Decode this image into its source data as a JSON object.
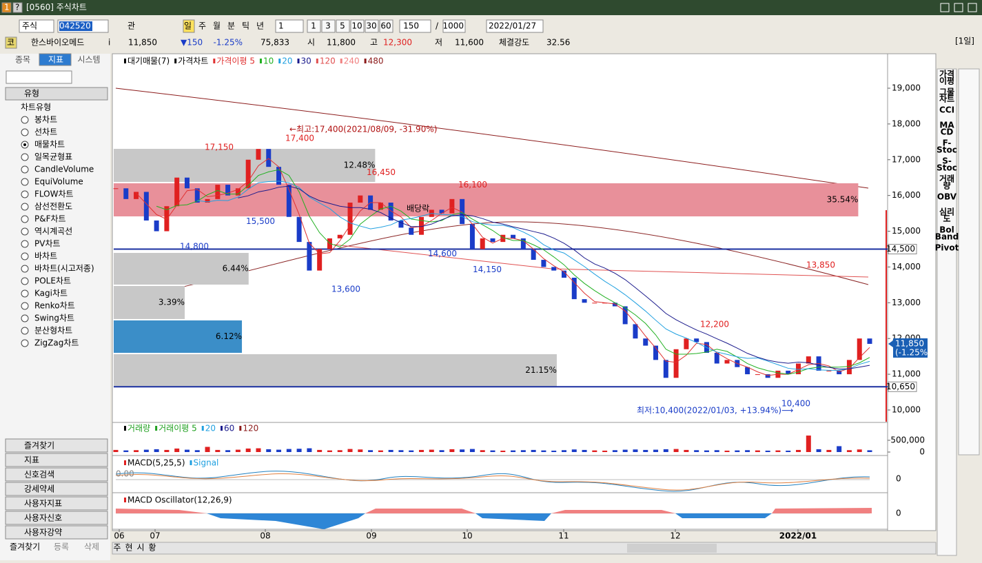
{
  "window": {
    "title": "[0560] 주식차트",
    "icons": [
      "1",
      "?"
    ]
  },
  "toolbar": {
    "market": "주식",
    "code": "042520",
    "watch": "관",
    "periods": [
      "일",
      "주",
      "월",
      "분",
      "틱",
      "년"
    ],
    "unit": "1",
    "quick": [
      "1",
      "3",
      "5",
      "10",
      "30",
      "60"
    ],
    "count": "150",
    "sep": "/",
    "max": "1000",
    "date": "2022/01/27"
  },
  "info": {
    "tag": "코",
    "name": "한스바이오메드",
    "i": "i",
    "price": "11,850",
    "change": "▼150",
    "rate": "-1.25%",
    "volume": "75,833",
    "open_label": "시",
    "open": "11,800",
    "high_label": "고",
    "high": "12,300",
    "low_label": "저",
    "low": "11,600",
    "strength_label": "체결강도",
    "strength": "32.56",
    "period": "[1일]"
  },
  "left": {
    "tabs": [
      "종목",
      "지표",
      "시스템"
    ],
    "section": "유형",
    "group": "차트유형",
    "items": [
      "봉차트",
      "선차트",
      "매물차트",
      "일목균형표",
      "CandleVolume",
      "EquiVolume",
      "FLOW차트",
      "삼선전환도",
      "P&F차트",
      "역시계곡선",
      "PV차트",
      "바차트",
      "바차트(시고저종)",
      "POLE차트",
      "Kagi차트",
      "Renko차트",
      "Swing차트",
      "분산형차트",
      "ZigZag차트"
    ],
    "menus": [
      "즐겨찾기",
      "지표",
      "신호검색",
      "강세약세",
      "사용자지표",
      "사용자신호",
      "사용자강약"
    ],
    "footer": [
      "즐겨찾기",
      "등록",
      "삭제"
    ]
  },
  "chart": {
    "legend": [
      {
        "name": "대기매물(7)",
        "color": "#000000"
      },
      {
        "name": "가격차트",
        "color": "#000000"
      },
      {
        "name": "가격이평 5",
        "color": "#e03030"
      },
      {
        "name": "10",
        "color": "#20b020"
      },
      {
        "name": "20",
        "color": "#20a0e0"
      },
      {
        "name": "30",
        "color": "#1a1a8c"
      },
      {
        "name": "120",
        "color": "#e05050"
      },
      {
        "name": "240",
        "color": "#f08080"
      },
      {
        "name": "480",
        "color": "#8b1a1a"
      }
    ],
    "ylim": [
      9672,
      19925
    ],
    "yticks": [
      {
        "value": 10000,
        "label": "10,000"
      },
      {
        "value": 11000,
        "label": "11,000"
      },
      {
        "value": 12000,
        "label": "12,000"
      },
      {
        "value": 13000,
        "label": "13,000"
      },
      {
        "value": 14000,
        "label": "14,000"
      },
      {
        "value": 15000,
        "label": "15,000"
      },
      {
        "value": 16000,
        "label": "16,000"
      },
      {
        "value": 17000,
        "label": "17,000"
      },
      {
        "value": 18000,
        "label": "18,000"
      },
      {
        "value": 19000,
        "label": "19,000"
      }
    ],
    "profile": {
      "bins": [
        10636,
        11580,
        12525,
        13488,
        14413,
        15396,
        16360,
        17323
      ],
      "values": [
        21.15,
        6.12,
        3.39,
        6.44,
        null,
        35.54,
        12.48
      ],
      "value_labels": [
        "21.15%",
        "6.12%",
        "3.39%",
        "6.44%",
        null,
        "35.54%",
        "12.48%"
      ],
      "colors": [
        "#c8c8c8",
        "#3b8ec8",
        "#c8c8c8",
        "#c8c8c8",
        "#c8c8c8",
        "#e8909a",
        "#c8c8c8"
      ]
    },
    "lines": [
      {
        "value": 14500,
        "label": "14,500"
      },
      {
        "value": 10650,
        "label": "10,650"
      }
    ],
    "current": {
      "value": 11850,
      "label": "11,850",
      "rate": "(-1.25%)"
    },
    "annotations": [
      "←최고:17,400(2021/08/09, -31.90%)",
      "최저:10,400(2022/01/03, +13.94%)⟶"
    ],
    "note": "배당락",
    "price_labels": [
      {
        "value": 17150,
        "label": "17,150",
        "kind": "high"
      },
      {
        "value": 17400,
        "label": "17,400",
        "kind": "high"
      },
      {
        "value": 16450,
        "label": "16,450",
        "kind": "high"
      },
      {
        "value": 16100,
        "label": "16,100",
        "kind": "high"
      },
      {
        "value": 15500,
        "label": "15,500",
        "kind": "low"
      },
      {
        "value": 14800,
        "label": "14,800",
        "kind": "low"
      },
      {
        "value": 14600,
        "label": "14,600",
        "kind": "low"
      },
      {
        "value": 14150,
        "label": "14,150",
        "kind": "low"
      },
      {
        "value": 13600,
        "label": "13,600",
        "kind": "low"
      },
      {
        "value": 12200,
        "label": "12,200",
        "kind": "high"
      },
      {
        "value": 13850,
        "label": "13,850",
        "kind": "high"
      },
      {
        "value": 10400,
        "label": "10,400",
        "kind": "low"
      }
    ],
    "categories": [
      "06",
      "07",
      "08",
      "09",
      "10",
      "11",
      "12",
      "2022/01"
    ],
    "closes": [
      16200,
      15900,
      16100,
      15300,
      15000,
      15700,
      16500,
      16200,
      15800,
      15900,
      16300,
      16000,
      16200,
      17000,
      17300,
      16800,
      16300,
      15400,
      14700,
      13900,
      14500,
      14800,
      14900,
      15800,
      16000,
      15600,
      15800,
      15300,
      15100,
      14900,
      15400,
      15600,
      15500,
      15900,
      15200,
      14500,
      14800,
      14700,
      14900,
      14800,
      14500,
      14200,
      14000,
      13900,
      13700,
      13100,
      13000,
      13000,
      13000,
      12900,
      12400,
      12000,
      11800,
      11400,
      10900,
      11700,
      12000,
      11900,
      11600,
      11300,
      11400,
      11200,
      11000,
      11000,
      10900,
      11100,
      11000,
      11300,
      11500,
      11100,
      11100,
      11000,
      11400,
      12000,
      11850
    ],
    "volume": {
      "legend": [
        "거래량",
        "거래이평 5",
        "20",
        "60",
        "120"
      ],
      "ylim": [
        0,
        1170000
      ],
      "yticks": [
        {
          "value": 0,
          "label": "0"
        },
        {
          "value": 500000,
          "label": "500,000"
        }
      ],
      "values": [
        90000,
        70000,
        80000,
        100000,
        120000,
        90000,
        150000,
        100000,
        80000,
        220000,
        90000,
        80000,
        100000,
        150000,
        160000,
        120000,
        100000,
        130000,
        140000,
        160000,
        90000,
        70000,
        80000,
        130000,
        110000,
        80000,
        70000,
        90000,
        80000,
        70000,
        90000,
        100000,
        80000,
        120000,
        110000,
        130000,
        80000,
        70000,
        60000,
        70000,
        80000,
        90000,
        70000,
        60000,
        80000,
        110000,
        90000,
        70000,
        60000,
        80000,
        100000,
        110000,
        90000,
        100000,
        120000,
        130000,
        90000,
        80000,
        70000,
        80000,
        60000,
        70000,
        80000,
        70000,
        60000,
        70000,
        60000,
        90000,
        700000,
        120000,
        90000,
        250000,
        80000,
        110000,
        75833
      ]
    },
    "macd": {
      "legend": [
        "MACD(5,25,5)",
        "Signal"
      ],
      "zero": "0.00",
      "axis": "0"
    },
    "osc": {
      "title": "MACD Oscillator(12,26,9)",
      "axis": "0"
    },
    "tabs": [
      "주",
      "현",
      "시",
      "황"
    ]
  },
  "right_tools": [
    [
      "가격",
      "이평"
    ],
    [
      "그물",
      "차트"
    ],
    [
      "CCI"
    ],
    [
      "MA",
      "CD"
    ],
    [
      "F-",
      "Stoc"
    ],
    [
      "S-",
      "Stoc"
    ],
    [
      "거래",
      "량"
    ],
    [
      "OBV"
    ],
    [
      "심리",
      "도"
    ],
    [
      "Bol",
      "Band"
    ],
    [
      "Pivot"
    ]
  ]
}
